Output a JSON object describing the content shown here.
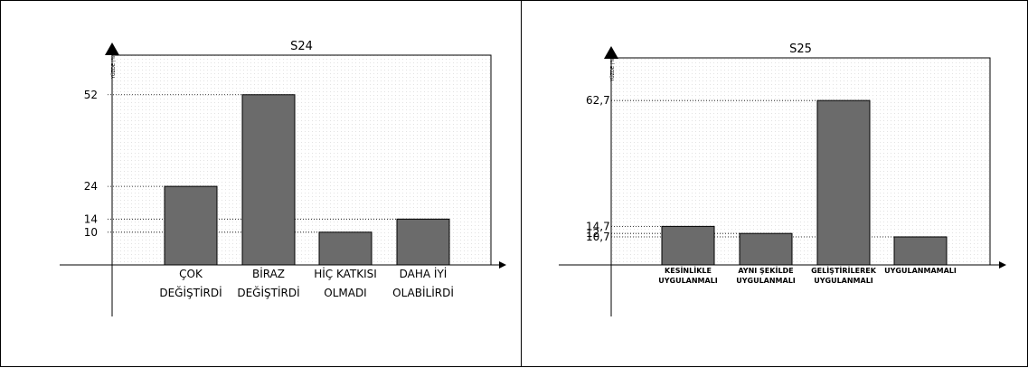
{
  "chart_data": [
    {
      "type": "bar",
      "title": "S24",
      "ylabel": "YÜZDE (%)",
      "xlabel": "",
      "categories": [
        [
          "ÇOK",
          "DEĞİŞTİRDİ"
        ],
        [
          "BİRAZ",
          "DEĞİŞTİRDİ"
        ],
        [
          "HİÇ KATKISI",
          "OLMADI"
        ],
        [
          "DAHA İYİ",
          "OLABİLİRDİ"
        ]
      ],
      "values": [
        24,
        52,
        10,
        14
      ],
      "value_labels": [
        "24",
        "52",
        "10",
        "14"
      ],
      "ylim": [
        0,
        66
      ],
      "grid": false,
      "bar_color": "#6b6b6b"
    },
    {
      "type": "bar",
      "title": "S25",
      "ylabel": "YÜZDE (%)",
      "xlabel": "",
      "categories": [
        [
          "KESİNLİKLE",
          "UYGULANMALI"
        ],
        [
          "AYNI ŞEKİLDE",
          "UYGULANMALI"
        ],
        [
          "GELİŞTİRİLEREK",
          "UYGULANMALI"
        ],
        [
          "UYGULANMAMALI"
        ]
      ],
      "values": [
        14.7,
        12,
        62.7,
        10.7
      ],
      "value_labels": [
        "14,7",
        "12",
        "62,7",
        "10,7"
      ],
      "ylim": [
        0,
        80
      ],
      "grid": false,
      "bar_color": "#6b6b6b"
    }
  ]
}
